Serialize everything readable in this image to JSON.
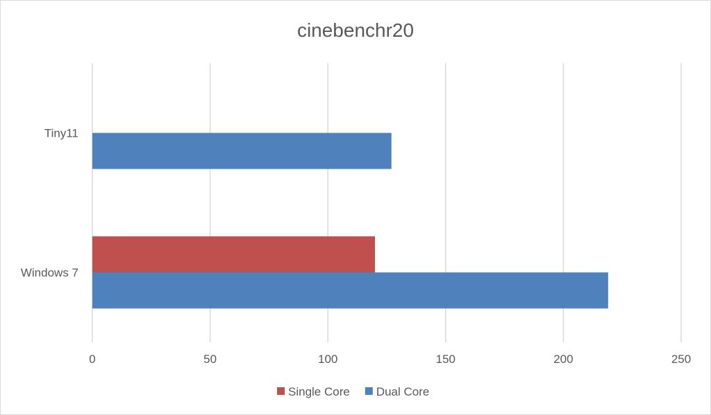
{
  "chart_data": {
    "type": "bar",
    "orientation": "horizontal",
    "title": "cinebenchr20",
    "categories": [
      "Tiny11",
      "Windows 7"
    ],
    "series": [
      {
        "name": "Single Core",
        "color": "#c0504d",
        "values": [
          null,
          120
        ]
      },
      {
        "name": "Dual Core",
        "color": "#4f81bd",
        "values": [
          127,
          219
        ]
      }
    ],
    "xlim": [
      0,
      250
    ],
    "xticks": [
      0,
      50,
      100,
      150,
      200,
      250
    ],
    "grid": true,
    "legend_position": "bottom"
  }
}
